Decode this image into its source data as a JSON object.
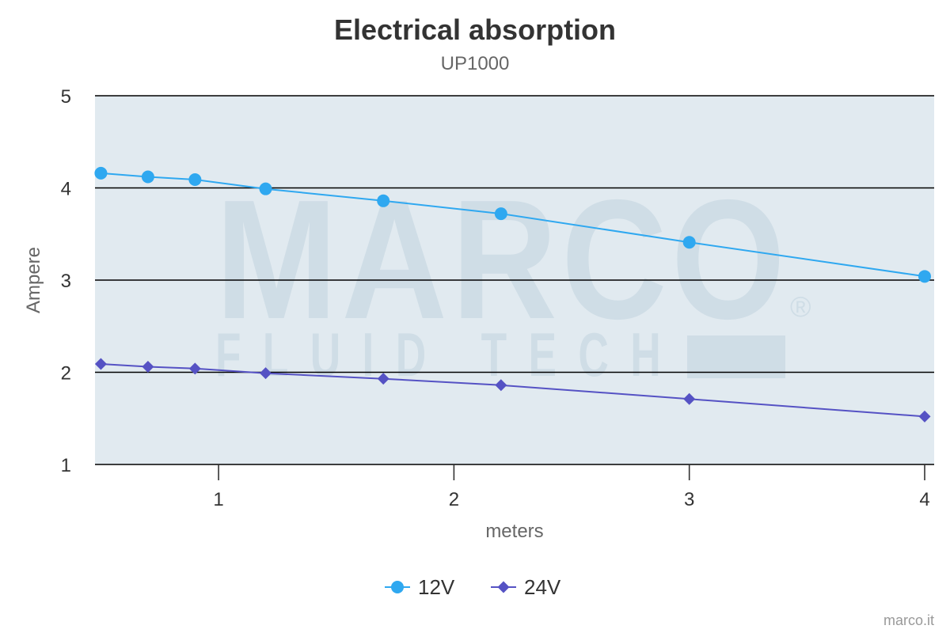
{
  "chart_data": {
    "type": "line",
    "title": "Electrical absorption",
    "subtitle": "UP1000",
    "xlabel": "meters",
    "ylabel": "Ampere",
    "xlim": [
      0.475,
      4
    ],
    "ylim": [
      1,
      5
    ],
    "x_ticks": [
      1,
      2,
      3,
      4
    ],
    "y_ticks": [
      1,
      2,
      3,
      4,
      5
    ],
    "grid": true,
    "legend_position": "bottom-center",
    "credit": "marco.it",
    "watermark": {
      "brand": "MARCO",
      "tagline": "FLUID TECH",
      "registered": "®"
    },
    "colors": {
      "plot_background": "#e1eaf0",
      "grid": "#000000",
      "watermark": "#cfdde6"
    },
    "series": [
      {
        "name": "12V",
        "color": "#2fa8f0",
        "marker": "circle",
        "x": [
          0.5,
          0.7,
          0.9,
          1.2,
          1.7,
          2.2,
          3.0,
          4.0
        ],
        "y": [
          4.16,
          4.12,
          4.09,
          3.99,
          3.86,
          3.72,
          3.41,
          3.04
        ]
      },
      {
        "name": "24V",
        "color": "#5552c4",
        "marker": "diamond",
        "x": [
          0.5,
          0.7,
          0.9,
          1.2,
          1.7,
          2.2,
          3.0,
          4.0
        ],
        "y": [
          2.09,
          2.06,
          2.04,
          1.99,
          1.93,
          1.86,
          1.71,
          1.52
        ]
      }
    ]
  }
}
